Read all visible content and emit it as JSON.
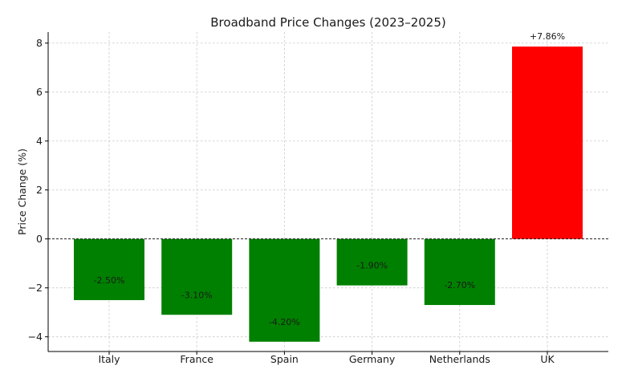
{
  "chart_data": {
    "type": "bar",
    "title": "Broadband Price Changes (2023–2025)",
    "xlabel": "",
    "ylabel": "Price Change (%)",
    "categories": [
      "Italy",
      "France",
      "Spain",
      "Germany",
      "Netherlands",
      "UK"
    ],
    "values": [
      -2.5,
      -3.1,
      -4.2,
      -1.9,
      -2.7,
      7.86
    ],
    "data_labels": [
      "-2.50%",
      "-3.10%",
      "-4.20%",
      "-1.90%",
      "-2.70%",
      "+7.86%"
    ],
    "bar_colors": [
      "#008000",
      "#008000",
      "#008000",
      "#008000",
      "#008000",
      "#ff0000"
    ],
    "ylim": [
      -4.6,
      8.45
    ],
    "yticks": [
      -4,
      -2,
      0,
      2,
      4,
      6,
      8
    ],
    "ytick_labels": [
      "−4",
      "−2",
      "0",
      "2",
      "4",
      "6",
      "8"
    ],
    "grid": true,
    "zero_line": "dashed"
  }
}
